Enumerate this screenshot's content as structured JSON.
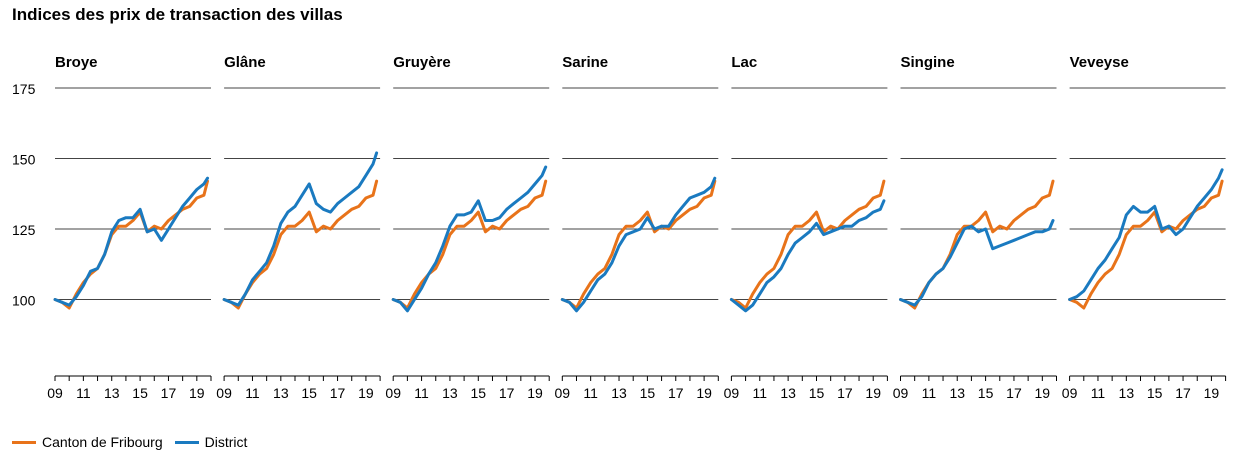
{
  "title": "Indices des prix de transaction des villas",
  "colors": {
    "canton": "#e8731a",
    "district": "#1a7ac0",
    "grid": "#444444",
    "axis": "#000000"
  },
  "legend": [
    {
      "label": "Canton de Fribourg",
      "color": "#e8731a"
    },
    {
      "label": "District",
      "color": "#1a7ac0"
    }
  ],
  "chart_data": {
    "type": "line",
    "panels": [
      "Broye",
      "Glâne",
      "Gruyère",
      "Sarine",
      "Lac",
      "Singine",
      "Veveyse"
    ],
    "ylim": [
      75,
      175
    ],
    "yticks": [
      100,
      125,
      150,
      175
    ],
    "xlim": [
      2009,
      2020
    ],
    "xticks": [
      "09",
      "11",
      "13",
      "15",
      "17",
      "19"
    ],
    "grid": true,
    "legend_position": "bottom-left",
    "canton": {
      "name": "Canton de Fribourg",
      "x": [
        2009,
        2009.5,
        2010,
        2010.5,
        2011,
        2011.5,
        2012,
        2012.5,
        2013,
        2013.5,
        2014,
        2014.5,
        2015,
        2015.5,
        2016,
        2016.5,
        2017,
        2017.5,
        2018,
        2018.5,
        2019,
        2019.5,
        2019.75
      ],
      "y": [
        100,
        99,
        97,
        102,
        106,
        109,
        111,
        116,
        123,
        126,
        126,
        128,
        131,
        124,
        126,
        125,
        128,
        130,
        132,
        133,
        136,
        137,
        142
      ]
    },
    "districts": [
      {
        "name": "Broye",
        "x": [
          2009,
          2009.5,
          2010,
          2010.5,
          2011,
          2011.5,
          2012,
          2012.5,
          2013,
          2013.5,
          2014,
          2014.5,
          2015,
          2015.5,
          2016,
          2016.5,
          2017,
          2017.5,
          2018,
          2018.5,
          2019,
          2019.5,
          2019.75
        ],
        "y": [
          100,
          99,
          98,
          101,
          105,
          110,
          111,
          116,
          124,
          128,
          129,
          129,
          132,
          124,
          125,
          121,
          125,
          129,
          133,
          136,
          139,
          141,
          143
        ]
      },
      {
        "name": "Glâne",
        "x": [
          2009,
          2009.5,
          2010,
          2010.5,
          2011,
          2011.5,
          2012,
          2012.5,
          2013,
          2013.5,
          2014,
          2014.5,
          2015,
          2015.5,
          2016,
          2016.5,
          2017,
          2017.5,
          2018,
          2018.5,
          2019,
          2019.5,
          2019.75
        ],
        "y": [
          100,
          99,
          98,
          102,
          107,
          110,
          113,
          119,
          127,
          131,
          133,
          137,
          141,
          134,
          132,
          131,
          134,
          136,
          138,
          140,
          144,
          148,
          152
        ]
      },
      {
        "name": "Gruyère",
        "x": [
          2009,
          2009.5,
          2010,
          2010.5,
          2011,
          2011.5,
          2012,
          2012.5,
          2013,
          2013.5,
          2014,
          2014.5,
          2015,
          2015.5,
          2016,
          2016.5,
          2017,
          2017.5,
          2018,
          2018.5,
          2019,
          2019.5,
          2019.75
        ],
        "y": [
          100,
          99,
          96,
          100,
          104,
          109,
          113,
          119,
          126,
          130,
          130,
          131,
          135,
          128,
          128,
          129,
          132,
          134,
          136,
          138,
          141,
          144,
          147
        ]
      },
      {
        "name": "Sarine",
        "x": [
          2009,
          2009.5,
          2010,
          2010.5,
          2011,
          2011.5,
          2012,
          2012.5,
          2013,
          2013.5,
          2014,
          2014.5,
          2015,
          2015.5,
          2016,
          2016.5,
          2017,
          2017.5,
          2018,
          2018.5,
          2019,
          2019.5,
          2019.75
        ],
        "y": [
          100,
          99,
          96,
          99,
          103,
          107,
          109,
          113,
          119,
          123,
          124,
          125,
          129,
          125,
          126,
          126,
          130,
          133,
          136,
          137,
          138,
          140,
          143
        ]
      },
      {
        "name": "Lac",
        "x": [
          2009,
          2009.5,
          2010,
          2010.5,
          2011,
          2011.5,
          2012,
          2012.5,
          2013,
          2013.5,
          2014,
          2014.5,
          2015,
          2015.5,
          2016,
          2016.5,
          2017,
          2017.5,
          2018,
          2018.5,
          2019,
          2019.5,
          2019.75
        ],
        "y": [
          100,
          98,
          96,
          98,
          102,
          106,
          108,
          111,
          116,
          120,
          122,
          124,
          127,
          123,
          124,
          125,
          126,
          126,
          128,
          129,
          131,
          132,
          135
        ]
      },
      {
        "name": "Singine",
        "x": [
          2009,
          2009.5,
          2010,
          2010.5,
          2011,
          2011.5,
          2012,
          2012.5,
          2013,
          2013.5,
          2014,
          2014.5,
          2015,
          2015.5,
          2016,
          2016.5,
          2017,
          2017.5,
          2018,
          2018.5,
          2019,
          2019.5,
          2019.75
        ],
        "y": [
          100,
          99,
          98,
          101,
          106,
          109,
          111,
          115,
          120,
          125,
          126,
          124,
          125,
          118,
          119,
          120,
          121,
          122,
          123,
          124,
          124,
          125,
          128
        ]
      },
      {
        "name": "Veveyse",
        "x": [
          2009,
          2009.5,
          2010,
          2010.5,
          2011,
          2011.5,
          2012,
          2012.5,
          2013,
          2013.5,
          2014,
          2014.5,
          2015,
          2015.5,
          2016,
          2016.5,
          2017,
          2017.5,
          2018,
          2018.5,
          2019,
          2019.5,
          2019.75
        ],
        "y": [
          100,
          101,
          103,
          107,
          111,
          114,
          118,
          122,
          130,
          133,
          131,
          131,
          133,
          125,
          126,
          123,
          125,
          129,
          133,
          136,
          139,
          143,
          146
        ]
      }
    ]
  }
}
